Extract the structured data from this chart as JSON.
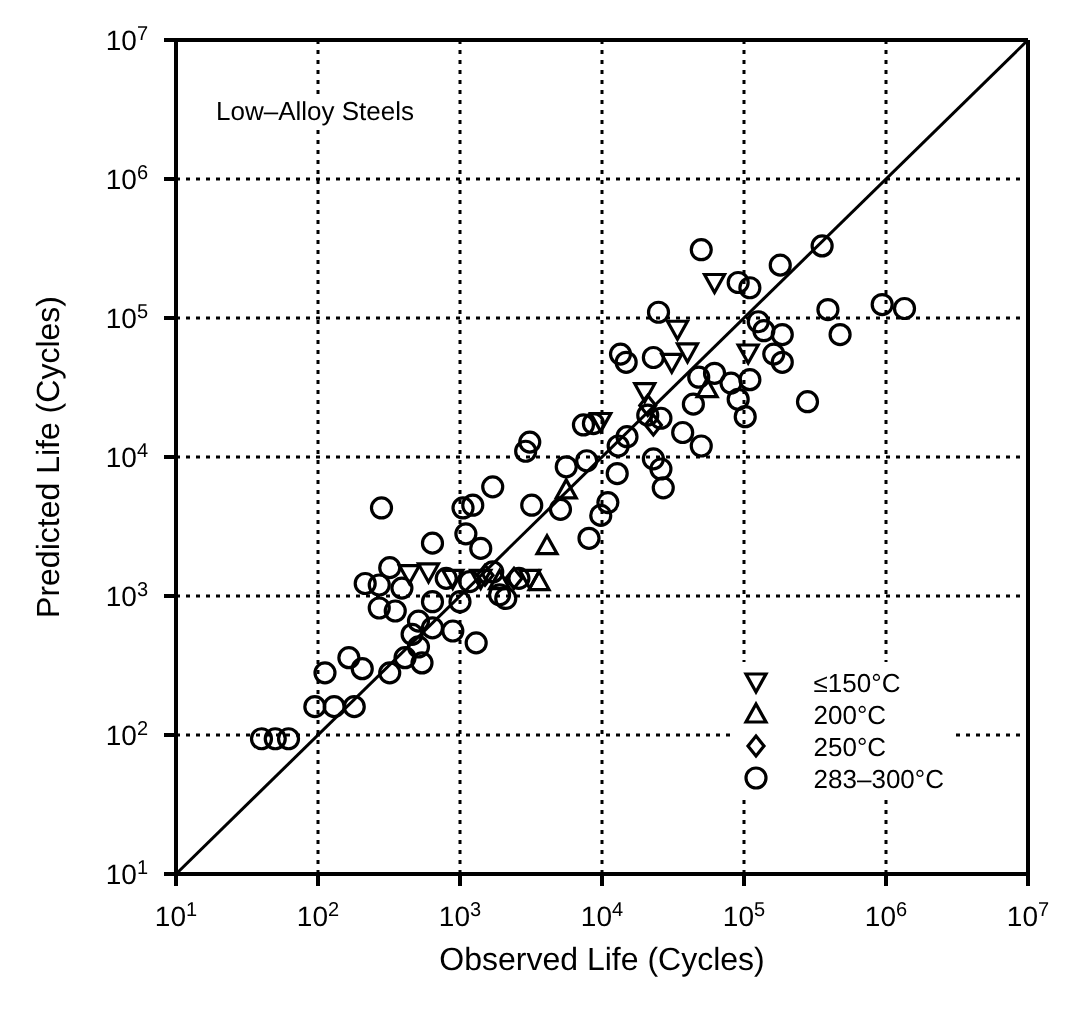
{
  "chart_data": {
    "type": "scatter",
    "xlabel": "Observed Life (Cycles)",
    "ylabel": "Predicted Life (Cycles)",
    "annotations": [
      "Low–Alloy Steels"
    ],
    "log": "xy",
    "grid": true,
    "legend": "bottom right",
    "xlim": [
      10,
      10000000
    ],
    "ylim": [
      10,
      10000000
    ],
    "xticks": [
      {
        "value": 10,
        "label": "10$^{1}$"
      },
      {
        "value": 100,
        "label": "10$^{2}$"
      },
      {
        "value": 1000,
        "label": "10$^{3}$"
      },
      {
        "value": 10000,
        "label": "10$^{4}$"
      },
      {
        "value": 100000,
        "label": "10$^{5}$"
      },
      {
        "value": 1000000,
        "label": "10$^{6}$"
      },
      {
        "value": 10000000,
        "label": "10$^{7}$"
      }
    ],
    "yticks": [
      {
        "value": 10,
        "label": "10$^{1}$"
      },
      {
        "value": 100,
        "label": "10$^{2}$"
      },
      {
        "value": 1000,
        "label": "10$^{3}$"
      },
      {
        "value": 10000,
        "label": "10$^{4}$"
      },
      {
        "value": 100000,
        "label": "10$^{5}$"
      },
      {
        "value": 1000000,
        "label": "10$^{6}$"
      },
      {
        "value": 10000000,
        "label": "10$^{7}$"
      }
    ],
    "series": [
      {
        "name": "≤150°C",
        "color": "#000000",
        "marker": "triangle-down",
        "x": [
          62000,
          34000,
          31000,
          107000,
          20000,
          40000,
          440,
          600,
          890,
          1400,
          3100,
          9800
        ],
        "values": [
          180000,
          83000,
          48000,
          56000,
          29500,
          57000,
          1450,
          1490,
          1340,
          1340,
          1340,
          18000
        ]
      },
      {
        "name": "200°C",
        "color": "#000000",
        "marker": "triangle",
        "x": [
          4100,
          3600,
          1900,
          55000,
          5600
        ],
        "values": [
          2300,
          1270,
          1290,
          31000,
          5800
        ]
      },
      {
        "name": "250°C",
        "color": "#000000",
        "marker": "diamond",
        "x": [
          21000,
          23000,
          2400,
          1500
        ],
        "values": [
          23500,
          17000,
          1340,
          1410
        ]
      },
      {
        "name": "283–300°C",
        "color": "#000000",
        "marker": "circle",
        "x": [
          50000,
          355000,
          180000,
          91000,
          110000,
          25000,
          390000,
          940000,
          1350000,
          126000,
          138000,
          186000,
          475000,
          13500,
          14800,
          23000,
          162000,
          186000,
          48000,
          62000,
          81000,
          110000,
          91000,
          44000,
          102000,
          280000,
          7400,
          8700,
          21000,
          26000,
          15000,
          13000,
          37000,
          50000,
          3100,
          2900,
          7800,
          5600,
          12800,
          23000,
          26000,
          27000,
          1700,
          280,
          1050,
          1230,
          11000,
          640,
          1100,
          8100,
          3200,
          5100,
          9800,
          1400,
          320,
          215,
          270,
          390,
          1900,
          2100,
          270,
          350,
          510,
          640,
          890,
          1300,
          165,
          205,
          112,
          320,
          410,
          540,
          510,
          95,
          130,
          180,
          40,
          50,
          62,
          800,
          1170,
          1700,
          2600,
          640,
          1000,
          460
        ],
        "values": [
          310000,
          330000,
          240000,
          180000,
          165000,
          110000,
          115000,
          125000,
          117000,
          94000,
          81000,
          76000,
          76000,
          55000,
          48000,
          52000,
          55000,
          48000,
          37500,
          40000,
          34000,
          36000,
          26000,
          24000,
          19500,
          25000,
          17000,
          17400,
          20000,
          19000,
          14000,
          12000,
          15000,
          12000,
          12800,
          11000,
          9400,
          8500,
          7600,
          9700,
          8200,
          6000,
          6100,
          4300,
          4300,
          4500,
          4700,
          2400,
          2800,
          2600,
          4500,
          4200,
          3800,
          2200,
          1600,
          1230,
          1200,
          1140,
          1020,
          960,
          820,
          780,
          660,
          590,
          560,
          460,
          360,
          300,
          280,
          280,
          360,
          330,
          430,
          160,
          160,
          160,
          94,
          94,
          94,
          1340,
          1270,
          1490,
          1340,
          910,
          910,
          530
        ]
      },
      {
        "type": "line",
        "color": "#000000",
        "x": [
          10,
          10000000
        ],
        "values": [
          10,
          10000000
        ]
      }
    ]
  }
}
